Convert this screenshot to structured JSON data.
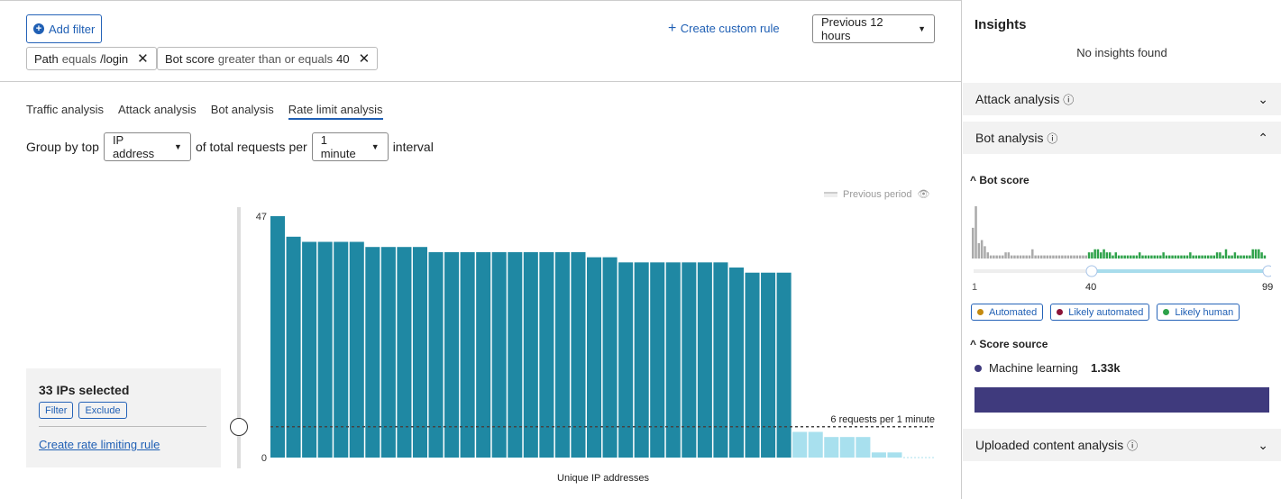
{
  "filters": {
    "add_filter": "Add filter",
    "create_rule": "Create custom rule",
    "time_range": "Previous 12 hours",
    "chips": [
      {
        "field": "Path",
        "op": "equals",
        "value": "/login"
      },
      {
        "field": "Bot score",
        "op": "greater than or equals",
        "value": "40"
      }
    ]
  },
  "tabs": [
    {
      "label": "Traffic analysis"
    },
    {
      "label": "Attack analysis"
    },
    {
      "label": "Bot analysis"
    },
    {
      "label": "Rate limit analysis",
      "active": true
    }
  ],
  "group_by": {
    "prefix": "Group by top",
    "field": "IP address",
    "middle": "of total requests per",
    "interval": "1 minute",
    "suffix": "interval"
  },
  "selection": {
    "title": "33 IPs selected",
    "filter": "Filter",
    "exclude": "Exclude",
    "create": "Create rate limiting rule"
  },
  "legend": {
    "previous_period": "Previous period"
  },
  "chart_data": {
    "type": "bar",
    "xlabel": "Unique IP addresses",
    "ylabel": "",
    "ylim": [
      0,
      47
    ],
    "yticks": [
      "0",
      "47"
    ],
    "values": [
      47,
      43,
      42,
      42,
      42,
      42,
      41,
      41,
      41,
      41,
      40,
      40,
      40,
      40,
      40,
      40,
      40,
      40,
      40,
      40,
      39,
      39,
      38,
      38,
      38,
      38,
      38,
      38,
      38,
      37,
      36,
      36,
      36,
      5,
      5,
      4,
      4,
      4,
      1,
      1
    ],
    "selected_count": 33,
    "threshold": 6,
    "threshold_label": "6 requests per 1 minute",
    "colors": {
      "selected": "#1f88a3",
      "unselected": "#a8e0ee"
    }
  },
  "insights": {
    "title": "Insights",
    "empty": "No insights found",
    "attack": "Attack analysis",
    "bot": "Bot analysis",
    "uploaded": "Uploaded content analysis",
    "bot_score": {
      "title": "Bot score",
      "min": "1",
      "low": "40",
      "max": "99",
      "hist": [
        10,
        17,
        5,
        6,
        4,
        2,
        1,
        1,
        1,
        1,
        1,
        2,
        2,
        1,
        1,
        1,
        1,
        1,
        1,
        1,
        3,
        1,
        1,
        1,
        1,
        1,
        1,
        1,
        1,
        1,
        1,
        1,
        1,
        1,
        1,
        1,
        1,
        1,
        1,
        2,
        2,
        3,
        3,
        2,
        3,
        2,
        2,
        1,
        2,
        1,
        1,
        1,
        1,
        1,
        1,
        1,
        2,
        1,
        1,
        1,
        1,
        1,
        1,
        1,
        2,
        1,
        1,
        1,
        1,
        1,
        1,
        1,
        1,
        2,
        1,
        1,
        1,
        1,
        1,
        1,
        1,
        1,
        2,
        2,
        1,
        3,
        1,
        1,
        2,
        1,
        1,
        1,
        1,
        1,
        3,
        3,
        3,
        2,
        1
      ]
    },
    "categories": [
      {
        "label": "Automated",
        "color": "#c48a10"
      },
      {
        "label": "Likely automated",
        "color": "#8b1338"
      },
      {
        "label": "Likely human",
        "color": "#2ea24a"
      }
    ],
    "score_source": {
      "title": "Score source",
      "label": "Machine learning",
      "value": "1.33k",
      "color": "#3f3a7d"
    }
  }
}
